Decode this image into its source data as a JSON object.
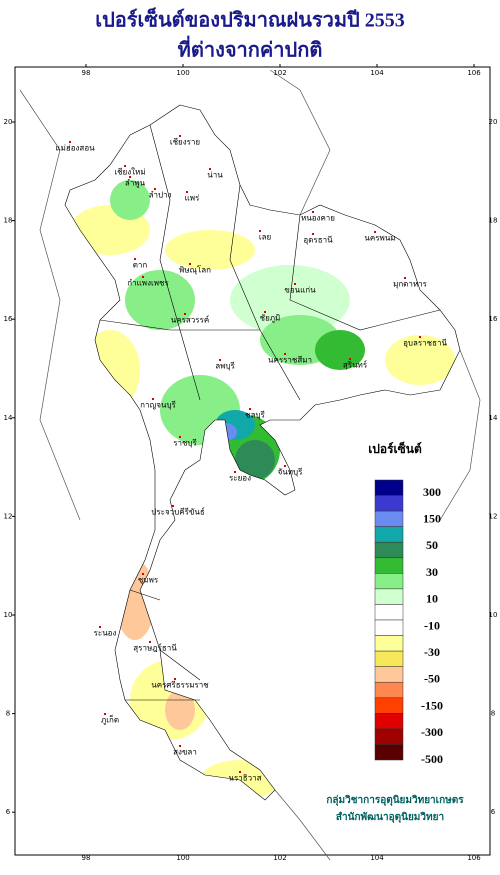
{
  "title": {
    "line1": "เปอร์เซ็นต์ของปริมาณฝนรวมปี  2553",
    "line2": "ที่ต่างจากค่าปกติ"
  },
  "map": {
    "lon_ticks": [
      98,
      100,
      102,
      104,
      106
    ],
    "lat_ticks": [
      20,
      18,
      16,
      14,
      12,
      10,
      8,
      6
    ],
    "provinces": [
      "เชียงราย",
      "แม่ฮ่องสอน",
      "เชียงใหม่",
      "ลำพูน",
      "ลำปาง",
      "น่าน",
      "แพร่",
      "ตาก",
      "พิษณุโลก",
      "กำแพงเพชร",
      "หนองคาย",
      "อุดรธานี",
      "นครพนม",
      "เลย",
      "ขอนแก่น",
      "มุกดาหาร",
      "ชัยภูมิ",
      "นครสวรรค์",
      "ลพบุรี",
      "นครราชสีมา",
      "สุรินทร์",
      "อุบลราชธานี",
      "กาญจนบุรี",
      "ราชบุรี",
      "ชลบุรี",
      "ระยอง",
      "จันทบุรี",
      "ประจวบคีรีขันธ์",
      "ชุมพร",
      "ระนอง",
      "สุราษฎร์ธานี",
      "นครศรีธรรมราช",
      "ภูเก็ต",
      "สงขลา",
      "นราธิวาส"
    ]
  },
  "legend": {
    "title": "เปอร์เซ็นต์",
    "colors": [
      "#00008b",
      "#3a3ad0",
      "#6a8cf0",
      "#10a8a8",
      "#2e8b57",
      "#33bb33",
      "#88ee88",
      "#d0ffd0",
      "#ffffff",
      "#ffffff",
      "#ffff99",
      "#f7e85a",
      "#ffc89a",
      "#ff8850",
      "#ff4000",
      "#e00000",
      "#a00000",
      "#5a0000"
    ],
    "labels": [
      300,
      150,
      50,
      30,
      10,
      -10,
      -30,
      -50,
      -150,
      -300,
      -500
    ]
  },
  "credits": [
    "กลุ่มวิชาการอุตุนิยมวิทยาเกษตร",
    "สำนักพัฒนาอุตุนิยมวิทยา"
  ]
}
